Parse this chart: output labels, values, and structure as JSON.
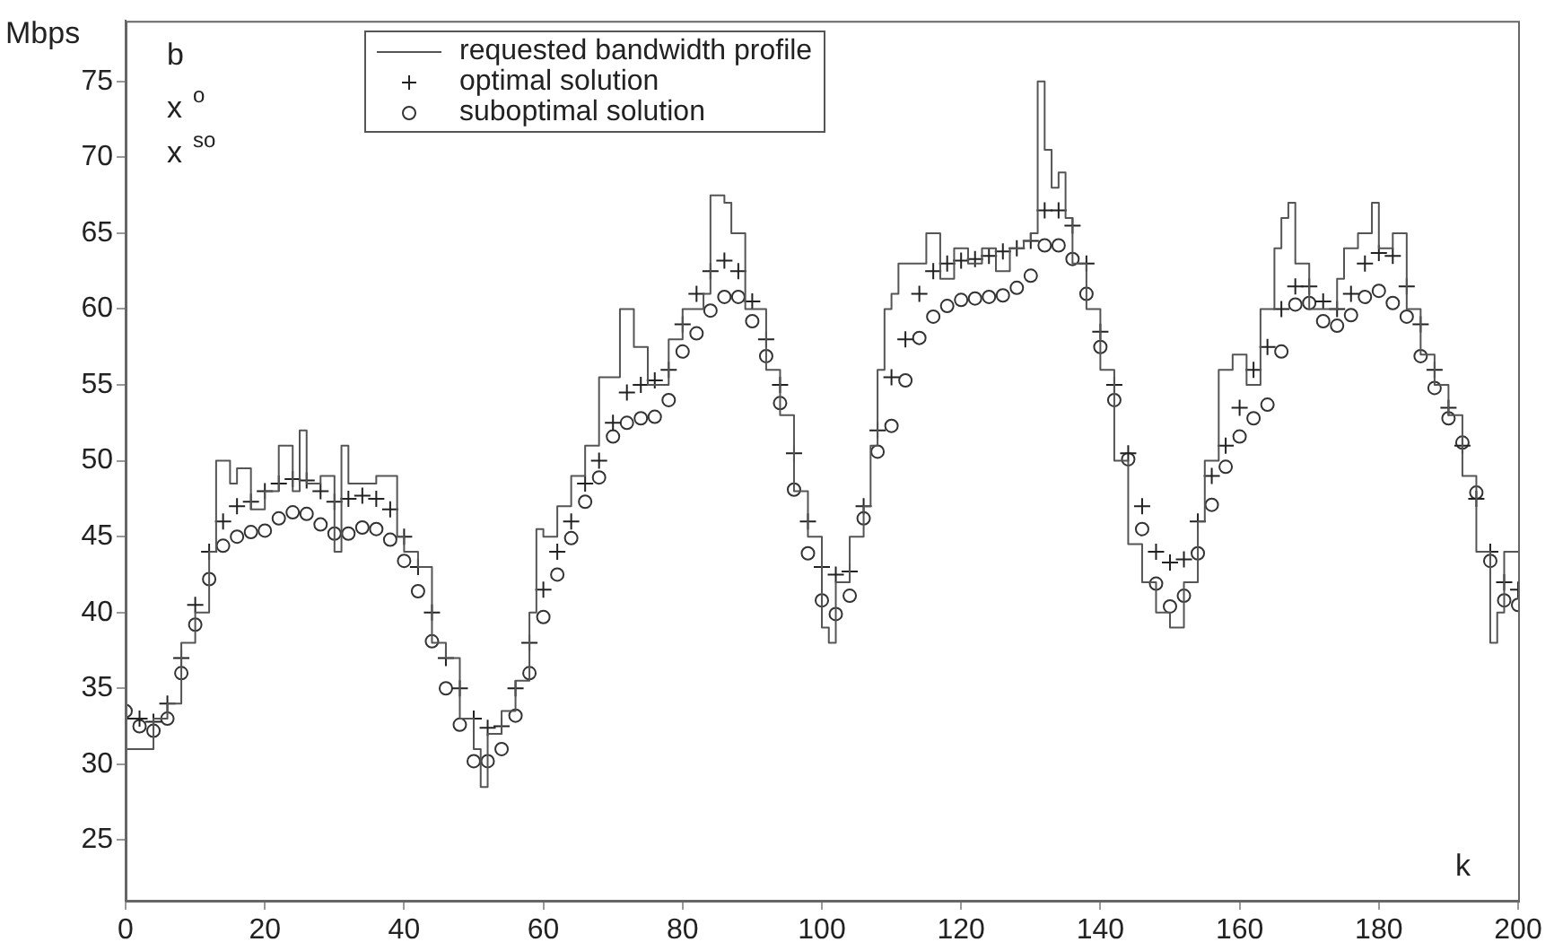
{
  "chart_data": {
    "type": "scatter",
    "xlabel": "k",
    "ylabel": "Mbps",
    "annotations": [
      "b",
      "x$^{o}$",
      "x$^{so}$"
    ],
    "xlim": [
      0,
      200
    ],
    "ylim": [
      21,
      79
    ],
    "xticks": [
      0,
      20,
      40,
      60,
      80,
      100,
      120,
      140,
      160,
      180,
      200
    ],
    "yticks": [
      25,
      30,
      35,
      40,
      45,
      50,
      55,
      60,
      65,
      70,
      75
    ],
    "grid": false,
    "legend": "top left",
    "x": [
      0,
      2,
      4,
      6,
      8,
      10,
      12,
      14,
      16,
      18,
      20,
      22,
      24,
      26,
      28,
      30,
      32,
      34,
      36,
      38,
      40,
      42,
      44,
      46,
      48,
      50,
      52,
      54,
      56,
      58,
      60,
      62,
      64,
      66,
      68,
      70,
      72,
      74,
      76,
      78,
      80,
      82,
      84,
      86,
      88,
      90,
      92,
      94,
      96,
      98,
      100,
      102,
      104,
      106,
      108,
      110,
      112,
      114,
      116,
      118,
      120,
      122,
      124,
      126,
      128,
      130,
      132,
      134,
      136,
      138,
      140,
      142,
      144,
      146,
      148,
      150,
      152,
      154,
      156,
      158,
      160,
      162,
      164,
      166,
      168,
      170,
      172,
      174,
      176,
      178,
      180,
      182,
      184,
      186,
      188,
      190,
      192,
      194,
      196,
      198,
      200
    ],
    "series": [
      {
        "name": "requested bandwidth profile",
        "type": "step",
        "color": "#555555",
        "marker": "none",
        "line_style": "solid",
        "x": [
          0,
          2,
          4,
          6,
          8,
          10,
          12,
          13,
          15,
          16,
          18,
          20,
          22,
          24,
          25,
          26,
          28,
          30,
          31,
          32,
          34,
          36,
          38,
          39,
          40,
          42,
          44,
          46,
          48,
          50,
          51,
          52,
          54,
          56,
          58,
          59,
          60,
          62,
          64,
          66,
          68,
          70,
          71,
          73,
          75,
          76,
          78,
          80,
          83,
          84,
          86,
          87,
          89,
          90,
          92,
          94,
          96,
          98,
          100,
          101,
          102,
          104,
          106,
          107,
          108,
          109,
          110,
          111,
          113,
          115,
          117,
          119,
          121,
          123,
          125,
          127,
          129,
          130,
          131,
          132,
          133,
          134,
          135,
          136,
          138,
          140,
          142,
          144,
          146,
          148,
          150,
          152,
          154,
          155,
          157,
          159,
          161,
          163,
          165,
          166,
          167,
          168,
          170,
          172,
          174,
          175,
          177,
          179,
          180,
          182,
          184,
          186,
          188,
          190,
          192,
          194,
          196,
          197,
          198,
          200
        ],
        "values": [
          31,
          31,
          33,
          34,
          38,
          40,
          44,
          50,
          48.5,
          49.5,
          46.8,
          48,
          51,
          48,
          52,
          48.5,
          49,
          44,
          51,
          48.5,
          48.5,
          49,
          49,
          45,
          44,
          43,
          38,
          37,
          33,
          31,
          28.5,
          32,
          33.5,
          35.5,
          40,
          45.5,
          45,
          47,
          49,
          51,
          55.5,
          55.5,
          60,
          57.5,
          55,
          55,
          58,
          60,
          61,
          67.5,
          67,
          65,
          60,
          60,
          56,
          53,
          48,
          45,
          39,
          38,
          42,
          45,
          47,
          51,
          56,
          60,
          61,
          63,
          63,
          65,
          62,
          64,
          63,
          64,
          62.5,
          64,
          64.5,
          65,
          75,
          70.5,
          68,
          69,
          66,
          63,
          60,
          56,
          50,
          44.5,
          42,
          40,
          39,
          42,
          46,
          50,
          56,
          57,
          55,
          60,
          64,
          66,
          67,
          63,
          60,
          60,
          62,
          64,
          65,
          67,
          64,
          65,
          60,
          57,
          55,
          53,
          49,
          44,
          38,
          40,
          44,
          44
        ]
      },
      {
        "name": "optimal solution",
        "color": "#222222",
        "marker": "cross",
        "values": [
          33,
          33,
          32.8,
          34,
          37,
          40.5,
          44,
          46,
          47,
          47.3,
          48,
          48.5,
          48.8,
          48.7,
          48,
          47.3,
          47.5,
          47.7,
          47.5,
          46.8,
          45,
          43,
          40,
          37,
          35,
          33,
          32.4,
          32.5,
          35,
          38,
          41.5,
          44,
          46,
          48.5,
          50,
          52.5,
          54.5,
          55,
          55.3,
          56,
          59,
          61,
          62.5,
          63.2,
          62.5,
          60.5,
          58,
          55,
          50.5,
          46,
          43,
          42.5,
          42.7,
          47,
          52,
          55.5,
          58,
          61,
          62.5,
          63,
          63.2,
          63.3,
          63.5,
          63.8,
          64,
          64.5,
          66.5,
          66.5,
          65.5,
          63,
          58.5,
          55,
          50.5,
          47,
          44,
          43.3,
          43.5,
          46,
          49,
          51,
          53.5,
          56,
          57.5,
          60,
          61.5,
          61.5,
          60.5,
          60,
          61,
          63,
          63.7,
          63.5,
          61.5,
          59,
          56,
          53.5,
          51,
          47.5,
          44,
          42,
          41.5
        ]
      },
      {
        "name": "suboptimal solution",
        "color": "#333333",
        "marker": "circle",
        "values": [
          33.5,
          32.5,
          32.2,
          33,
          36,
          39.2,
          42.2,
          44.4,
          45,
          45.3,
          45.4,
          46.2,
          46.6,
          46.5,
          45.8,
          45.2,
          45.2,
          45.6,
          45.5,
          44.8,
          43.4,
          41.4,
          38.1,
          35,
          32.6,
          30.2,
          30.2,
          31,
          33.2,
          36,
          39.7,
          42.5,
          44.9,
          47.3,
          48.9,
          51.6,
          52.5,
          52.8,
          52.9,
          54,
          57.2,
          58.4,
          59.9,
          60.8,
          60.8,
          59.2,
          56.9,
          53.8,
          48.1,
          43.9,
          40.8,
          39.9,
          41.1,
          46.2,
          50.6,
          52.3,
          55.3,
          58.1,
          59.5,
          60.2,
          60.6,
          60.7,
          60.8,
          60.9,
          61.4,
          62.2,
          64.2,
          64.2,
          63.3,
          61,
          57.5,
          54,
          50.1,
          45.5,
          41.9,
          40.4,
          41.1,
          43.9,
          47.1,
          49.6,
          51.6,
          52.8,
          53.7,
          57.2,
          60.3,
          60.4,
          59.2,
          58.9,
          59.6,
          60.8,
          61.2,
          60.4,
          59.5,
          56.9,
          54.8,
          52.8,
          51.2,
          47.9,
          43.4,
          40.8,
          40.5
        ]
      }
    ]
  }
}
